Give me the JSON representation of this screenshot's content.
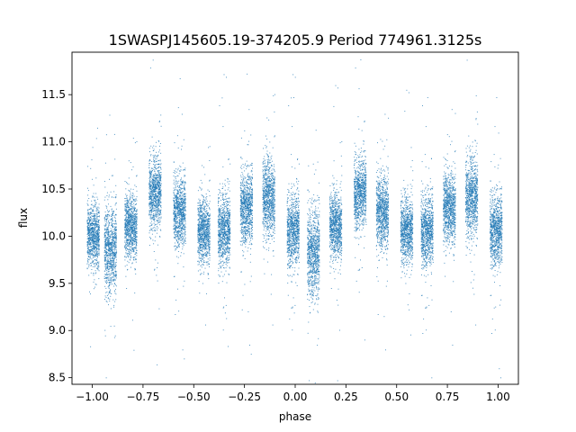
{
  "chart_data": {
    "type": "scatter",
    "title": "1SWASPJ145605.19-374205.9 Period 774961.3125s",
    "xlabel": "phase",
    "ylabel": "flux",
    "xlim": [
      -1.1,
      1.1
    ],
    "ylim": [
      8.43,
      11.95
    ],
    "x_ticks": [
      "−1.00",
      "−0.75",
      "−0.50",
      "−0.25",
      "0.00",
      "0.25",
      "0.50",
      "0.75",
      "1.00"
    ],
    "x_tick_values": [
      -1.0,
      -0.75,
      -0.5,
      -0.25,
      0.0,
      0.25,
      0.5,
      0.75,
      1.0
    ],
    "y_ticks": [
      "8.5",
      "9.0",
      "9.5",
      "10.0",
      "10.5",
      "11.0",
      "11.5"
    ],
    "y_tick_values": [
      8.5,
      9.0,
      9.5,
      10.0,
      10.5,
      11.0,
      11.5
    ],
    "grid": false,
    "point_color": "#1f77b4",
    "series": [
      {
        "clusters": [
          {
            "x": -0.995,
            "y": 10.0,
            "spread": 0.18
          },
          {
            "x": -0.91,
            "y": 9.85,
            "spread": 0.25
          },
          {
            "x": -0.81,
            "y": 10.1,
            "spread": 0.18
          },
          {
            "x": -0.69,
            "y": 10.45,
            "spread": 0.2
          },
          {
            "x": -0.57,
            "y": 10.25,
            "spread": 0.2
          },
          {
            "x": -0.45,
            "y": 10.05,
            "spread": 0.18
          },
          {
            "x": -0.35,
            "y": 10.05,
            "spread": 0.2
          },
          {
            "x": -0.24,
            "y": 10.3,
            "spread": 0.2
          },
          {
            "x": -0.13,
            "y": 10.4,
            "spread": 0.22
          },
          {
            "x": -0.01,
            "y": 10.05,
            "spread": 0.2
          },
          {
            "x": 0.09,
            "y": 9.82,
            "spread": 0.25
          },
          {
            "x": 0.2,
            "y": 10.1,
            "spread": 0.18
          },
          {
            "x": 0.32,
            "y": 10.45,
            "spread": 0.2
          },
          {
            "x": 0.43,
            "y": 10.25,
            "spread": 0.2
          },
          {
            "x": 0.55,
            "y": 10.05,
            "spread": 0.18
          },
          {
            "x": 0.65,
            "y": 10.05,
            "spread": 0.2
          },
          {
            "x": 0.76,
            "y": 10.3,
            "spread": 0.2
          },
          {
            "x": 0.87,
            "y": 10.4,
            "spread": 0.22
          },
          {
            "x": 0.99,
            "y": 10.05,
            "spread": 0.2
          }
        ]
      }
    ]
  }
}
